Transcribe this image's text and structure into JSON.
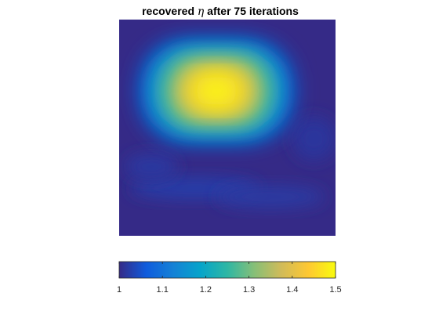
{
  "chart_data": {
    "type": "heatmap",
    "title_prefix": "recovered ",
    "title_symbol": "η",
    "title_suffix": " after 75 iterations",
    "xlabel": "",
    "ylabel": "",
    "axes_visible": false,
    "colormap": "parula",
    "color_range": [
      1,
      1.5
    ],
    "colorbar": {
      "location": "south",
      "ticks": [
        1,
        1.1,
        1.2,
        1.3,
        1.4,
        1.5
      ],
      "tick_labels": [
        "1",
        "1.1",
        "1.2",
        "1.3",
        "1.4",
        "1.5"
      ]
    },
    "field": {
      "background_value": 1.0,
      "inclusion": {
        "peak_value": 1.5,
        "center_x": 0.45,
        "center_y": 0.33,
        "semi_axis_x": 0.22,
        "semi_axis_y": 0.14
      }
    },
    "colors": {
      "parula_stops": [
        "#352a87",
        "#0f5cdd",
        "#1481d6",
        "#06a4ca",
        "#2eb7a4",
        "#87bf77",
        "#d1bb59",
        "#fec832",
        "#f9fb0e"
      ]
    }
  }
}
